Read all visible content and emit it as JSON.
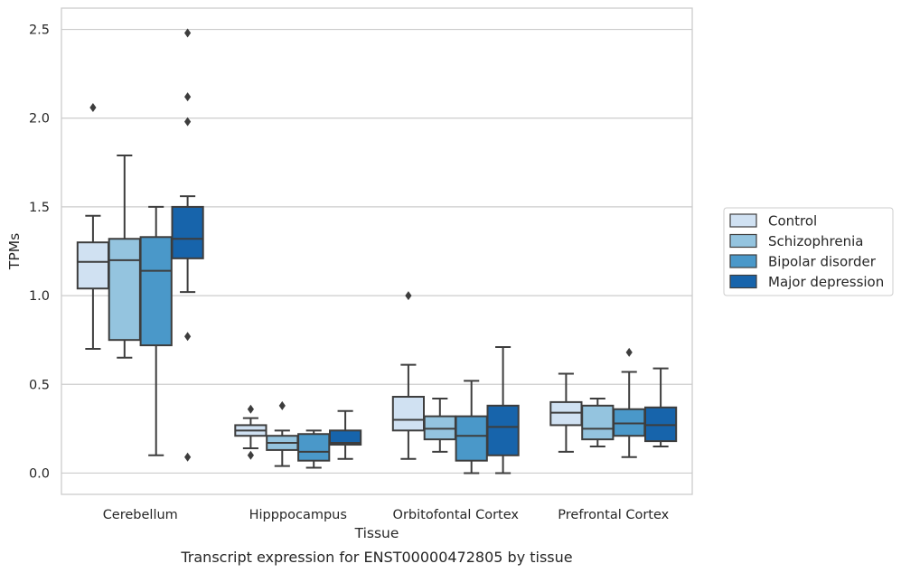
{
  "chart_data": {
    "type": "box",
    "title": "",
    "xlabel": "Tissue",
    "ylabel": "TPMs",
    "caption": "Transcript expression for ENST00000472805 by tissue",
    "ylim": [
      -0.12,
      2.62
    ],
    "yticks": [
      0.0,
      0.5,
      1.0,
      1.5,
      2.0,
      2.5
    ],
    "ytick_labels": [
      "0.0",
      "0.5",
      "1.0",
      "1.5",
      "2.0",
      "2.5"
    ],
    "grid": "horizontal",
    "legend_position": "right",
    "categories": [
      "Cerebellum",
      "Hipppocampus",
      "Orbitofontal Cortex",
      "Prefrontal Cortex"
    ],
    "series": [
      {
        "name": "Control",
        "color": "#d0e1f2",
        "boxes": [
          {
            "whisker_low": 0.7,
            "q1": 1.04,
            "median": 1.19,
            "q3": 1.3,
            "whisker_high": 1.45,
            "outliers": [
              2.06
            ]
          },
          {
            "whisker_low": 0.14,
            "q1": 0.21,
            "median": 0.24,
            "q3": 0.27,
            "whisker_high": 0.31,
            "outliers": [
              0.36,
              0.1
            ]
          },
          {
            "whisker_low": 0.08,
            "q1": 0.24,
            "median": 0.3,
            "q3": 0.43,
            "whisker_high": 0.61,
            "outliers": [
              1.0
            ]
          },
          {
            "whisker_low": 0.12,
            "q1": 0.27,
            "median": 0.34,
            "q3": 0.4,
            "whisker_high": 0.56,
            "outliers": []
          }
        ]
      },
      {
        "name": "Schizophrenia",
        "color": "#94c4df",
        "boxes": [
          {
            "whisker_low": 0.65,
            "q1": 0.75,
            "median": 1.2,
            "q3": 1.32,
            "whisker_high": 1.79,
            "outliers": []
          },
          {
            "whisker_low": 0.04,
            "q1": 0.13,
            "median": 0.17,
            "q3": 0.21,
            "whisker_high": 0.24,
            "outliers": [
              0.38
            ]
          },
          {
            "whisker_low": 0.12,
            "q1": 0.19,
            "median": 0.25,
            "q3": 0.32,
            "whisker_high": 0.42,
            "outliers": []
          },
          {
            "whisker_low": 0.15,
            "q1": 0.19,
            "median": 0.25,
            "q3": 0.38,
            "whisker_high": 0.42,
            "outliers": []
          }
        ]
      },
      {
        "name": "Bipolar disorder",
        "color": "#4a98c9",
        "boxes": [
          {
            "whisker_low": 0.1,
            "q1": 0.72,
            "median": 1.14,
            "q3": 1.33,
            "whisker_high": 1.5,
            "outliers": []
          },
          {
            "whisker_low": 0.03,
            "q1": 0.07,
            "median": 0.12,
            "q3": 0.22,
            "whisker_high": 0.24,
            "outliers": []
          },
          {
            "whisker_low": 0.0,
            "q1": 0.07,
            "median": 0.21,
            "q3": 0.32,
            "whisker_high": 0.52,
            "outliers": []
          },
          {
            "whisker_low": 0.09,
            "q1": 0.21,
            "median": 0.28,
            "q3": 0.36,
            "whisker_high": 0.57,
            "outliers": [
              0.68
            ]
          }
        ]
      },
      {
        "name": "Major depression",
        "color": "#1764ab",
        "boxes": [
          {
            "whisker_low": 1.02,
            "q1": 1.21,
            "median": 1.32,
            "q3": 1.5,
            "whisker_high": 1.56,
            "outliers": [
              2.48,
              2.12,
              1.98,
              0.77,
              0.09
            ]
          },
          {
            "whisker_low": 0.08,
            "q1": 0.16,
            "median": 0.17,
            "q3": 0.24,
            "whisker_high": 0.35,
            "outliers": []
          },
          {
            "whisker_low": 0.0,
            "q1": 0.1,
            "median": 0.26,
            "q3": 0.38,
            "whisker_high": 0.71,
            "outliers": []
          },
          {
            "whisker_low": 0.15,
            "q1": 0.18,
            "median": 0.27,
            "q3": 0.37,
            "whisker_high": 0.59,
            "outliers": []
          }
        ]
      }
    ]
  }
}
